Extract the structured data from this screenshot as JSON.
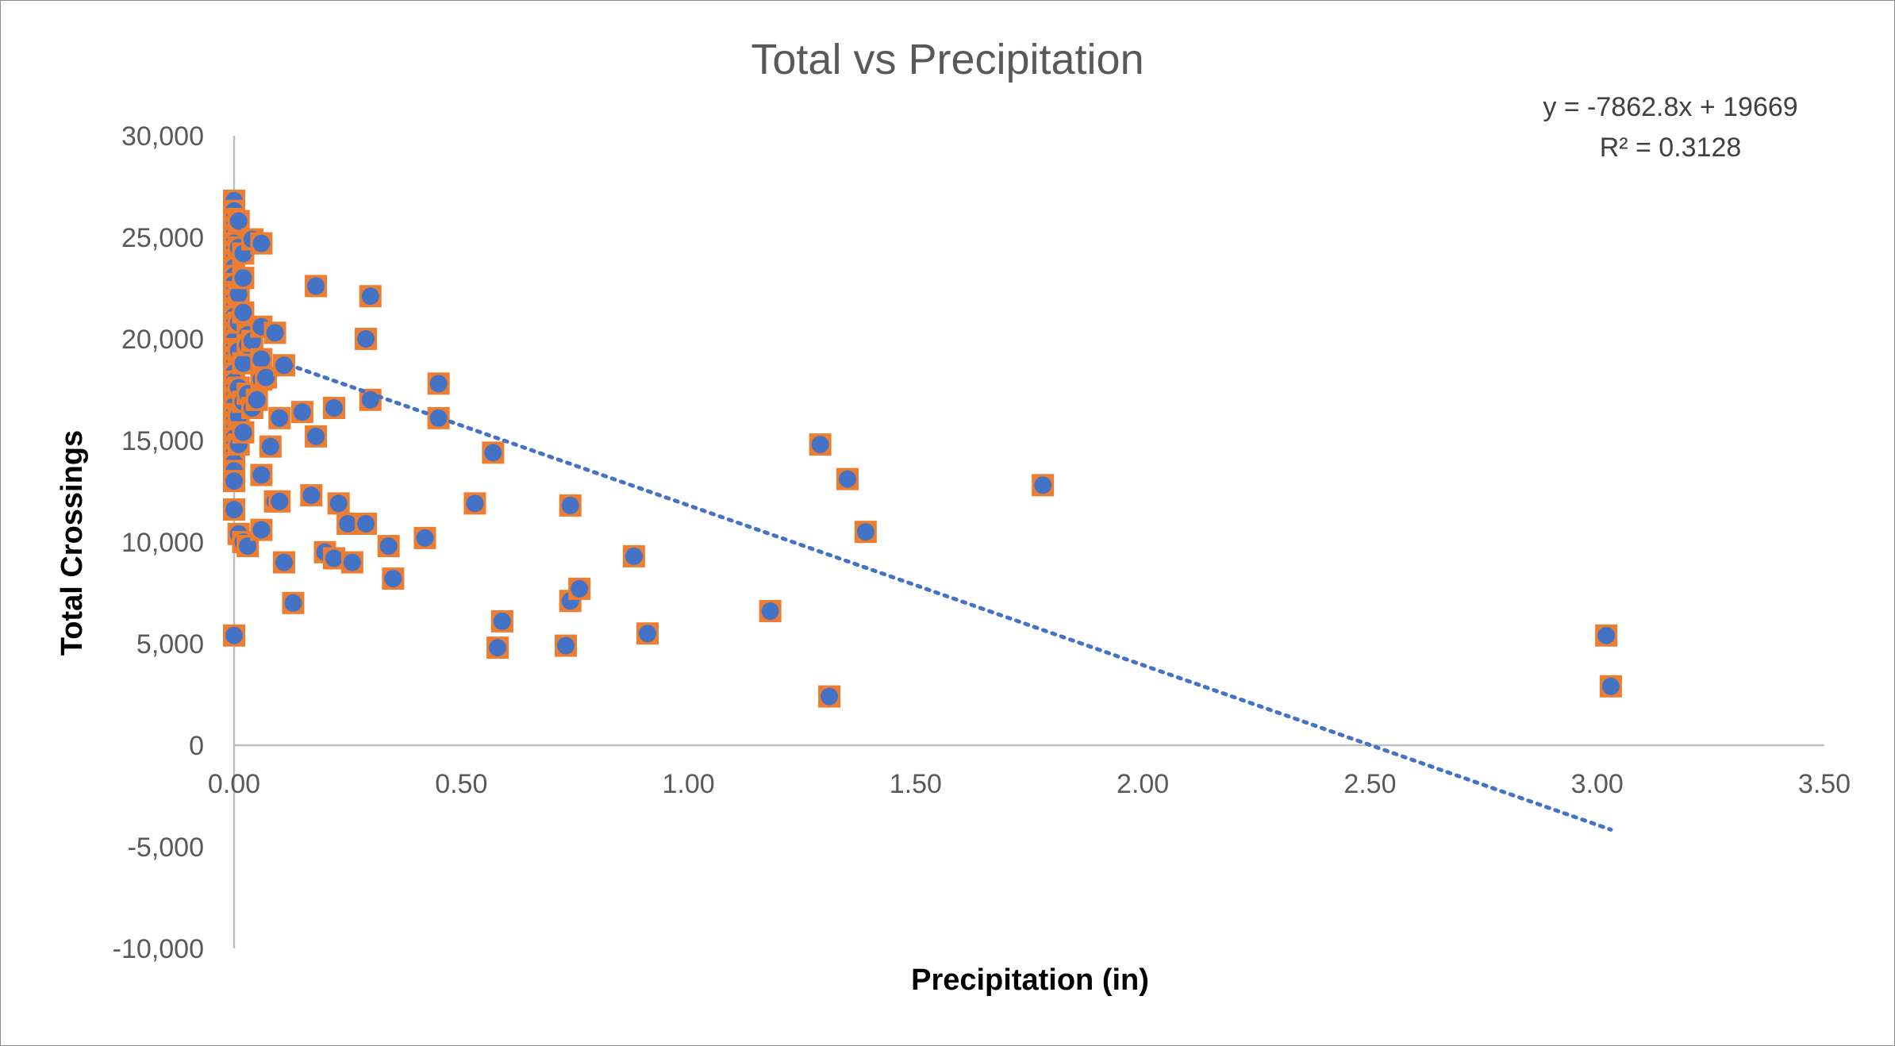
{
  "chart_data": {
    "type": "scatter",
    "title": "Total vs Precipitation",
    "xlabel": "Precipitation (in)",
    "ylabel": "Total Crossings",
    "xlim": [
      0,
      3.5
    ],
    "ylim": [
      -10000,
      30000
    ],
    "x_ticks": [
      "0.00",
      "0.50",
      "1.00",
      "1.50",
      "2.00",
      "2.50",
      "3.00",
      "3.50"
    ],
    "y_ticks": [
      "-10,000",
      "-5,000",
      "0",
      "5,000",
      "10,000",
      "15,000",
      "20,000",
      "25,000",
      "30,000"
    ],
    "x_tick_values": [
      0,
      0.5,
      1,
      1.5,
      2,
      2.5,
      3,
      3.5
    ],
    "y_tick_values": [
      -10000,
      -5000,
      0,
      5000,
      10000,
      15000,
      20000,
      25000,
      30000
    ],
    "grid": false,
    "legend": "none",
    "colors": {
      "marker_fill": "#4472c4",
      "marker_border": "#ed7d31",
      "trendline": "#4472c4"
    },
    "trendline": {
      "type": "linear",
      "slope": -7862.8,
      "intercept": 19669,
      "x_range": [
        0.1,
        3.03
      ],
      "equation_label": "y = -7862.8x + 19669",
      "r2_label": "R² = 0.3128"
    },
    "points": [
      {
        "x": 0.0,
        "y": 26800
      },
      {
        "x": 0.0,
        "y": 26300
      },
      {
        "x": 0.0,
        "y": 25900
      },
      {
        "x": 0.0,
        "y": 25500
      },
      {
        "x": 0.0,
        "y": 25100
      },
      {
        "x": 0.0,
        "y": 24700
      },
      {
        "x": 0.0,
        "y": 24300
      },
      {
        "x": 0.0,
        "y": 23900
      },
      {
        "x": 0.0,
        "y": 23500
      },
      {
        "x": 0.0,
        "y": 23100
      },
      {
        "x": 0.0,
        "y": 22700
      },
      {
        "x": 0.0,
        "y": 22300
      },
      {
        "x": 0.0,
        "y": 21900
      },
      {
        "x": 0.0,
        "y": 21500
      },
      {
        "x": 0.0,
        "y": 21100
      },
      {
        "x": 0.0,
        "y": 20700
      },
      {
        "x": 0.0,
        "y": 20300
      },
      {
        "x": 0.0,
        "y": 19900
      },
      {
        "x": 0.0,
        "y": 19500
      },
      {
        "x": 0.0,
        "y": 19100
      },
      {
        "x": 0.0,
        "y": 18700
      },
      {
        "x": 0.0,
        "y": 18300
      },
      {
        "x": 0.0,
        "y": 17900
      },
      {
        "x": 0.0,
        "y": 17500
      },
      {
        "x": 0.0,
        "y": 17100
      },
      {
        "x": 0.0,
        "y": 16700
      },
      {
        "x": 0.0,
        "y": 16300
      },
      {
        "x": 0.0,
        "y": 15900
      },
      {
        "x": 0.0,
        "y": 15500
      },
      {
        "x": 0.0,
        "y": 15100
      },
      {
        "x": 0.0,
        "y": 14700
      },
      {
        "x": 0.0,
        "y": 14300
      },
      {
        "x": 0.0,
        "y": 13900
      },
      {
        "x": 0.0,
        "y": 13500
      },
      {
        "x": 0.0,
        "y": 13000
      },
      {
        "x": 0.0,
        "y": 11600
      },
      {
        "x": 0.0,
        "y": 5400
      },
      {
        "x": 0.01,
        "y": 25800
      },
      {
        "x": 0.01,
        "y": 24500
      },
      {
        "x": 0.01,
        "y": 22200
      },
      {
        "x": 0.01,
        "y": 20800
      },
      {
        "x": 0.01,
        "y": 19400
      },
      {
        "x": 0.01,
        "y": 17600
      },
      {
        "x": 0.01,
        "y": 16200
      },
      {
        "x": 0.01,
        "y": 14800
      },
      {
        "x": 0.01,
        "y": 10400
      },
      {
        "x": 0.02,
        "y": 24200
      },
      {
        "x": 0.02,
        "y": 21300
      },
      {
        "x": 0.02,
        "y": 18800
      },
      {
        "x": 0.02,
        "y": 16900
      },
      {
        "x": 0.02,
        "y": 15400
      },
      {
        "x": 0.02,
        "y": 10000
      },
      {
        "x": 0.02,
        "y": 23000
      },
      {
        "x": 0.03,
        "y": 20200
      },
      {
        "x": 0.03,
        "y": 17300
      },
      {
        "x": 0.03,
        "y": 9800
      },
      {
        "x": 0.03,
        "y": 19700
      },
      {
        "x": 0.04,
        "y": 24900
      },
      {
        "x": 0.04,
        "y": 16600
      },
      {
        "x": 0.04,
        "y": 19900
      },
      {
        "x": 0.05,
        "y": 17000
      },
      {
        "x": 0.06,
        "y": 20600
      },
      {
        "x": 0.06,
        "y": 24700
      },
      {
        "x": 0.06,
        "y": 19000
      },
      {
        "x": 0.06,
        "y": 13300
      },
      {
        "x": 0.06,
        "y": 10600
      },
      {
        "x": 0.06,
        "y": 18000
      },
      {
        "x": 0.07,
        "y": 18100
      },
      {
        "x": 0.08,
        "y": 14700
      },
      {
        "x": 0.09,
        "y": 20300
      },
      {
        "x": 0.09,
        "y": 12000
      },
      {
        "x": 0.1,
        "y": 16100
      },
      {
        "x": 0.1,
        "y": 12000
      },
      {
        "x": 0.11,
        "y": 18700
      },
      {
        "x": 0.11,
        "y": 9000
      },
      {
        "x": 0.13,
        "y": 7000
      },
      {
        "x": 0.15,
        "y": 16400
      },
      {
        "x": 0.17,
        "y": 12300
      },
      {
        "x": 0.18,
        "y": 22600
      },
      {
        "x": 0.18,
        "y": 15200
      },
      {
        "x": 0.2,
        "y": 9500
      },
      {
        "x": 0.22,
        "y": 16600
      },
      {
        "x": 0.22,
        "y": 9200
      },
      {
        "x": 0.23,
        "y": 11900
      },
      {
        "x": 0.25,
        "y": 10900
      },
      {
        "x": 0.26,
        "y": 9000
      },
      {
        "x": 0.29,
        "y": 20000
      },
      {
        "x": 0.29,
        "y": 10900
      },
      {
        "x": 0.3,
        "y": 22100
      },
      {
        "x": 0.3,
        "y": 17000
      },
      {
        "x": 0.34,
        "y": 9800
      },
      {
        "x": 0.35,
        "y": 8200
      },
      {
        "x": 0.42,
        "y": 10200
      },
      {
        "x": 0.45,
        "y": 17800
      },
      {
        "x": 0.45,
        "y": 16100
      },
      {
        "x": 0.53,
        "y": 11900
      },
      {
        "x": 0.57,
        "y": 14400
      },
      {
        "x": 0.58,
        "y": 4800
      },
      {
        "x": 0.59,
        "y": 6100
      },
      {
        "x": 0.73,
        "y": 4900
      },
      {
        "x": 0.74,
        "y": 11800
      },
      {
        "x": 0.74,
        "y": 7100
      },
      {
        "x": 0.76,
        "y": 7700
      },
      {
        "x": 0.88,
        "y": 9300
      },
      {
        "x": 0.91,
        "y": 5500
      },
      {
        "x": 1.18,
        "y": 6600
      },
      {
        "x": 1.29,
        "y": 14800
      },
      {
        "x": 1.31,
        "y": 2400
      },
      {
        "x": 1.35,
        "y": 13100
      },
      {
        "x": 1.39,
        "y": 10500
      },
      {
        "x": 1.78,
        "y": 12800
      },
      {
        "x": 3.02,
        "y": 5400
      },
      {
        "x": 3.03,
        "y": 2900
      }
    ]
  }
}
